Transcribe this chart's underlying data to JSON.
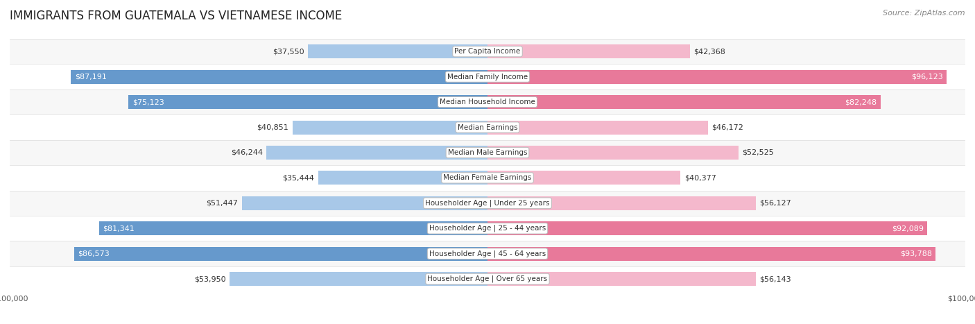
{
  "title": "IMMIGRANTS FROM GUATEMALA VS VIETNAMESE INCOME",
  "source": "Source: ZipAtlas.com",
  "categories": [
    "Per Capita Income",
    "Median Family Income",
    "Median Household Income",
    "Median Earnings",
    "Median Male Earnings",
    "Median Female Earnings",
    "Householder Age | Under 25 years",
    "Householder Age | 25 - 44 years",
    "Householder Age | 45 - 64 years",
    "Householder Age | Over 65 years"
  ],
  "guatemala_values": [
    37550,
    87191,
    75123,
    40851,
    46244,
    35444,
    51447,
    81341,
    86573,
    53950
  ],
  "vietnamese_values": [
    42368,
    96123,
    82248,
    46172,
    52525,
    40377,
    56127,
    92089,
    93788,
    56143
  ],
  "guatemala_labels": [
    "$37,550",
    "$87,191",
    "$75,123",
    "$40,851",
    "$46,244",
    "$35,444",
    "$51,447",
    "$81,341",
    "$86,573",
    "$53,950"
  ],
  "vietnamese_labels": [
    "$42,368",
    "$96,123",
    "$82,248",
    "$46,172",
    "$52,525",
    "$40,377",
    "$56,127",
    "$92,089",
    "$93,788",
    "$56,143"
  ],
  "guatemala_color_light": "#A8C8E8",
  "guatemala_color_dark": "#6699CC",
  "vietnamese_color_light": "#F4B8CC",
  "vietnamese_color_dark": "#E8799A",
  "label_inside_threshold": 62000,
  "max_value": 100000,
  "background_color": "#ffffff",
  "row_colors": [
    "#f7f7f7",
    "#ffffff",
    "#f7f7f7",
    "#ffffff",
    "#f7f7f7",
    "#ffffff",
    "#f7f7f7",
    "#ffffff",
    "#f7f7f7",
    "#ffffff"
  ],
  "title_fontsize": 12,
  "source_fontsize": 8,
  "label_fontsize": 8,
  "category_fontsize": 7.5,
  "legend_fontsize": 8.5,
  "axis_label_fontsize": 8
}
